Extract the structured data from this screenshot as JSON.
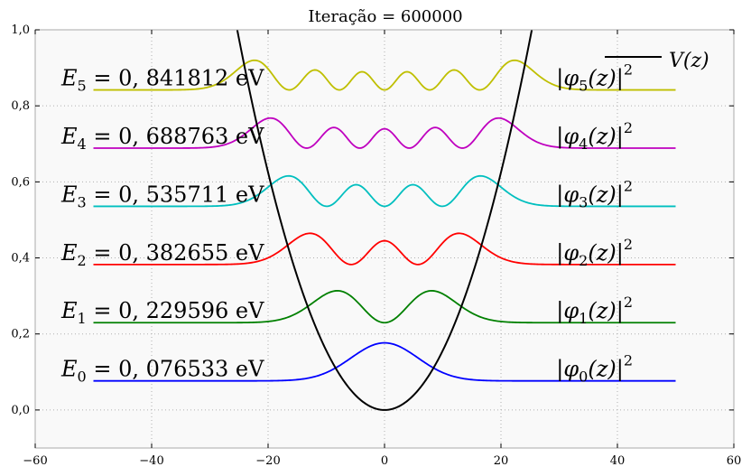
{
  "chart_data": {
    "type": "line",
    "title": "Iteração = 600000",
    "xlabel": "",
    "ylabel": "",
    "xlim": [
      -60,
      60
    ],
    "ylim": [
      -0.1,
      1.0
    ],
    "xticks": [
      -60,
      -40,
      -20,
      0,
      20,
      40,
      60
    ],
    "xtick_labels": [
      "−60",
      "−40",
      "−20",
      "0",
      "20",
      "40",
      "60"
    ],
    "yticks": [
      0.0,
      0.2,
      0.4,
      0.6,
      0.8,
      1.0
    ],
    "ytick_labels": [
      "0,0",
      "0,2",
      "0,4",
      "0,6",
      "0,8",
      "1,0"
    ],
    "grid": true,
    "legend": {
      "placement": "top-right",
      "entries": [
        {
          "label": "V(z)",
          "color": "#000000"
        }
      ]
    },
    "potential": {
      "name": "V(z)",
      "color": "#000000",
      "form": "parabola",
      "vertex": [
        0,
        0.0
      ],
      "points": [
        [
          -25.3,
          1.0
        ],
        [
          -20,
          0.62
        ],
        [
          -10,
          0.155
        ],
        [
          0,
          0.0
        ],
        [
          10,
          0.155
        ],
        [
          20,
          0.62
        ],
        [
          25.3,
          1.0
        ]
      ]
    },
    "series": [
      {
        "name": "|φ0(z)|²",
        "label_math": [
          "|φ",
          "0",
          "(z)|",
          "2"
        ],
        "energy_label": [
          "E",
          "0",
          " = 0, 076533 eV"
        ],
        "color": "#0000ff",
        "baseline": 0.076533,
        "x_range": [
          -50,
          50
        ],
        "amplitude": 0.1,
        "n": 0
      },
      {
        "name": "|φ1(z)|²",
        "label_math": [
          "|φ",
          "1",
          "(z)|",
          "2"
        ],
        "energy_label": [
          "E",
          "1",
          " = 0, 229596 eV"
        ],
        "color": "#008000",
        "baseline": 0.229596,
        "x_range": [
          -50,
          50
        ],
        "amplitude": 0.084,
        "n": 1
      },
      {
        "name": "|φ2(z)|²",
        "label_math": [
          "|φ",
          "2",
          "(z)|",
          "2"
        ],
        "energy_label": [
          "E",
          "2",
          " = 0, 382655 eV"
        ],
        "color": "#ff0000",
        "baseline": 0.382655,
        "x_range": [
          -50,
          50
        ],
        "amplitude": 0.082,
        "n": 2
      },
      {
        "name": "|φ3(z)|²",
        "label_math": [
          "|φ",
          "3",
          "(z)|",
          "2"
        ],
        "energy_label": [
          "E",
          "3",
          " = 0, 535711 eV"
        ],
        "color": "#00bfbf",
        "baseline": 0.535711,
        "x_range": [
          -50,
          50
        ],
        "amplitude": 0.08,
        "n": 3
      },
      {
        "name": "|φ4(z)|²",
        "label_math": [
          "|φ",
          "4",
          "(z)|",
          "2"
        ],
        "energy_label": [
          "E",
          "4",
          " = 0, 688763 eV"
        ],
        "color": "#bf00bf",
        "baseline": 0.688763,
        "x_range": [
          -50,
          50
        ],
        "amplitude": 0.079,
        "n": 4
      },
      {
        "name": "|φ5(z)|²",
        "label_math": [
          "|φ",
          "5",
          "(z)|",
          "2"
        ],
        "energy_label": [
          "E",
          "5",
          " = 0, 841812 eV"
        ],
        "color": "#bfbf00",
        "baseline": 0.841812,
        "x_range": [
          -50,
          50
        ],
        "amplitude": 0.078,
        "n": 5
      }
    ]
  }
}
